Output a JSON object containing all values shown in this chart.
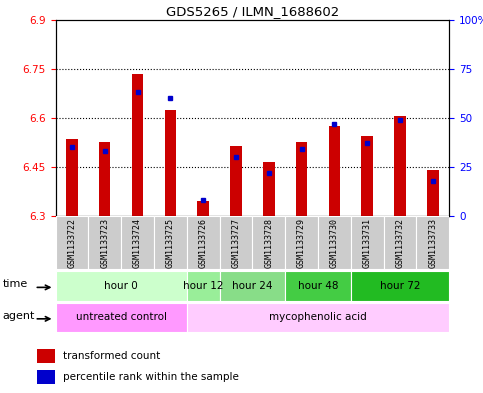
{
  "title": "GDS5265 / ILMN_1688602",
  "samples": [
    "GSM1133722",
    "GSM1133723",
    "GSM1133724",
    "GSM1133725",
    "GSM1133726",
    "GSM1133727",
    "GSM1133728",
    "GSM1133729",
    "GSM1133730",
    "GSM1133731",
    "GSM1133732",
    "GSM1133733"
  ],
  "red_values": [
    6.535,
    6.525,
    6.735,
    6.625,
    6.345,
    6.515,
    6.465,
    6.525,
    6.575,
    6.545,
    6.605,
    6.44
  ],
  "blue_values": [
    35,
    33,
    63,
    60,
    8,
    30,
    22,
    34,
    47,
    37,
    49,
    18
  ],
  "ylim_left": [
    6.3,
    6.9
  ],
  "ylim_right": [
    0,
    100
  ],
  "yticks_left": [
    6.3,
    6.45,
    6.6,
    6.75,
    6.9
  ],
  "yticks_right": [
    0,
    25,
    50,
    75,
    100
  ],
  "ytick_labels_left": [
    "6.3",
    "6.45",
    "6.6",
    "6.75",
    "6.9"
  ],
  "ytick_labels_right": [
    "0",
    "25",
    "50",
    "75",
    "100%"
  ],
  "bar_bottom": 6.3,
  "bar_width": 0.35,
  "time_groups": [
    {
      "label": "hour 0",
      "start": 0,
      "end": 4,
      "color": "#ccffcc"
    },
    {
      "label": "hour 12",
      "start": 4,
      "end": 5,
      "color": "#99ee99"
    },
    {
      "label": "hour 24",
      "start": 5,
      "end": 7,
      "color": "#88dd88"
    },
    {
      "label": "hour 48",
      "start": 7,
      "end": 9,
      "color": "#44cc44"
    },
    {
      "label": "hour 72",
      "start": 9,
      "end": 12,
      "color": "#22bb22"
    }
  ],
  "agent_groups": [
    {
      "label": "untreated control",
      "start": 0,
      "end": 4,
      "color": "#ff99ff"
    },
    {
      "label": "mycophenolic acid",
      "start": 4,
      "end": 12,
      "color": "#ffccff"
    }
  ],
  "red_color": "#cc0000",
  "blue_color": "#0000cc",
  "legend_red": "transformed count",
  "legend_blue": "percentile rank within the sample",
  "sample_label_bg": "#cccccc",
  "plot_bg": "white"
}
